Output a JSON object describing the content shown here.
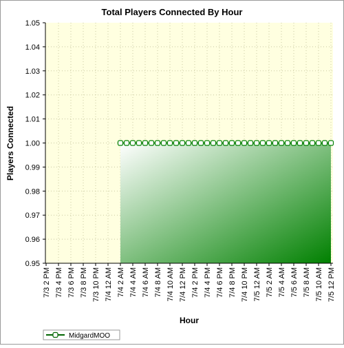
{
  "chart_data": {
    "type": "area",
    "title": "Total Players Connected By Hour",
    "xlabel": "Hour",
    "ylabel": "Players Connected",
    "ylim": [
      0.95,
      1.05
    ],
    "yticks": [
      "0.95",
      "0.96",
      "0.97",
      "0.98",
      "0.99",
      "1.00",
      "1.01",
      "1.02",
      "1.03",
      "1.04",
      "1.05"
    ],
    "xtick_labels": [
      "7/3 2 PM",
      "7/3 4 PM",
      "7/3 6 PM",
      "7/3 8 PM",
      "7/3 10 PM",
      "7/4 12 AM",
      "7/4 2 AM",
      "7/4 4 AM",
      "7/4 6 AM",
      "7/4 8 AM",
      "7/4 10 AM",
      "7/4 12 PM",
      "7/4 2 PM",
      "7/4 4 PM",
      "7/4 6 PM",
      "7/4 8 PM",
      "7/4 10 PM",
      "7/5 12 AM",
      "7/5 2 AM",
      "7/5 4 AM",
      "7/5 6 AM",
      "7/5 8 AM",
      "7/5 10 AM",
      "7/5 12 PM"
    ],
    "x_start": "7/3 2 PM",
    "x_end": "7/5 12 PM",
    "series": [
      {
        "name": "MidgardMOO",
        "color": "#008000",
        "x_first": "7/4 2 AM",
        "x_last": "7/5 12 PM",
        "x_step_hours": 1,
        "values": [
          1,
          1,
          1,
          1,
          1,
          1,
          1,
          1,
          1,
          1,
          1,
          1,
          1,
          1,
          1,
          1,
          1,
          1,
          1,
          1,
          1,
          1,
          1,
          1,
          1,
          1,
          1,
          1,
          1,
          1,
          1,
          1,
          1,
          1,
          1
        ]
      }
    ],
    "grid": true,
    "legend": "bottom-left"
  }
}
